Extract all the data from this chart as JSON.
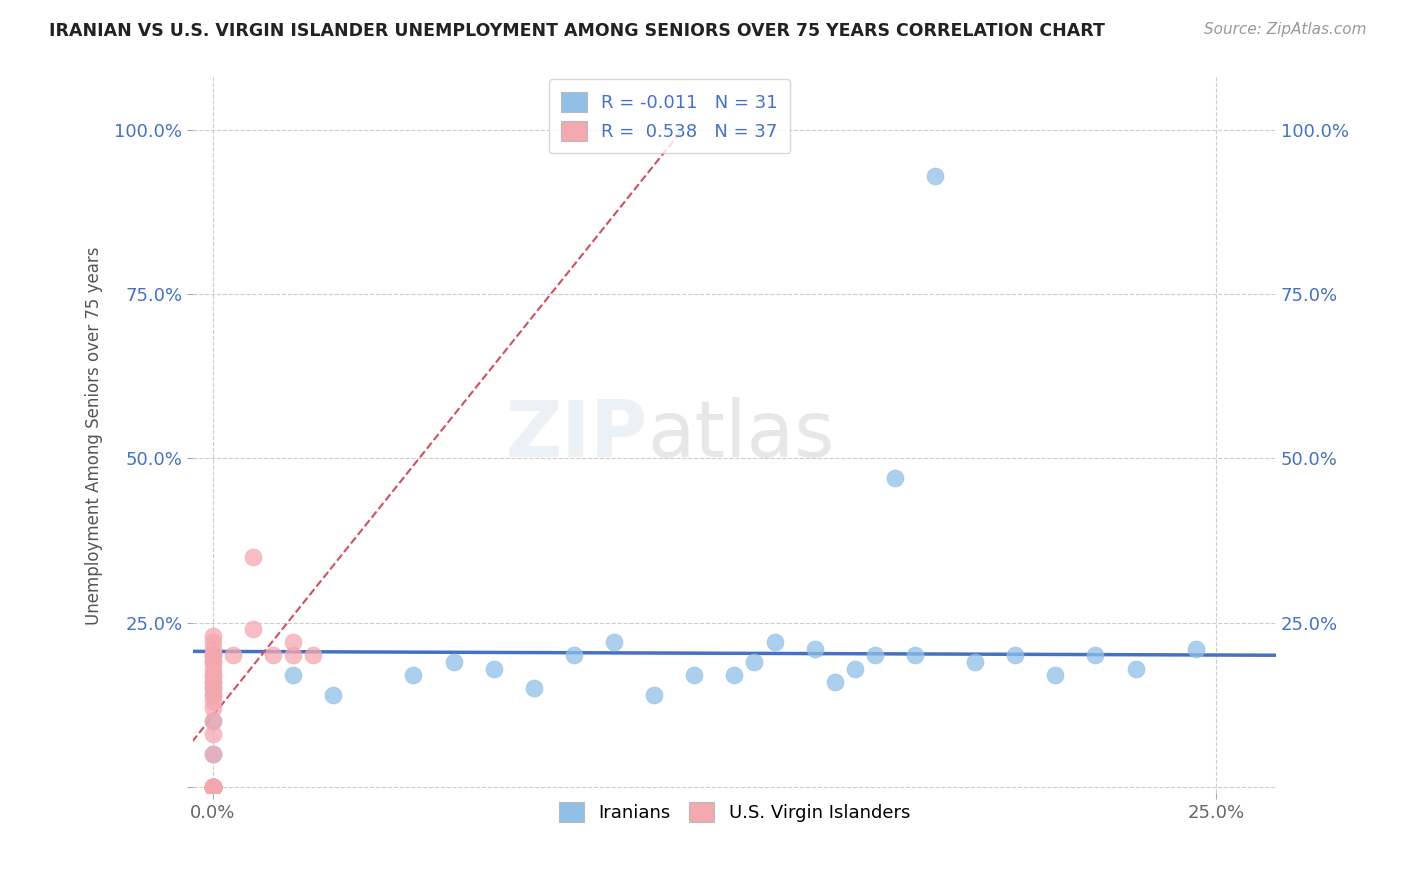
{
  "title": "IRANIAN VS U.S. VIRGIN ISLANDER UNEMPLOYMENT AMONG SENIORS OVER 75 YEARS CORRELATION CHART",
  "source": "Source: ZipAtlas.com",
  "ylabel": "Unemployment Among Seniors over 75 years",
  "color_iranian": "#90C0E8",
  "color_virgin": "#F4A8B0",
  "trendline_color_iranian": "#4472C4",
  "trendline_color_virgin": "#D05060",
  "watermark_zip": "ZIP",
  "watermark_atlas": "atlas",
  "label_iranians": "Iranians",
  "label_virgin": "U.S. Virgin Islanders",
  "legend1_text1": "R = -0.011   N = 31",
  "legend1_text2": "R =  0.538   N = 37",
  "iranian_x": [
    0.0,
    0.0,
    0.0,
    0.0,
    0.0,
    0.02,
    0.03,
    0.05,
    0.06,
    0.07,
    0.08,
    0.09,
    0.1,
    0.11,
    0.12,
    0.13,
    0.14,
    0.15,
    0.16,
    0.165,
    0.17,
    0.175,
    0.18,
    0.19,
    0.2,
    0.21,
    0.22,
    0.23,
    0.135,
    0.155,
    0.245
  ],
  "iranian_y": [
    0.0,
    0.05,
    0.1,
    0.15,
    0.2,
    0.17,
    0.14,
    0.17,
    0.19,
    0.18,
    0.15,
    0.2,
    0.22,
    0.14,
    0.17,
    0.17,
    0.22,
    0.21,
    0.18,
    0.2,
    0.47,
    0.2,
    0.93,
    0.19,
    0.2,
    0.17,
    0.2,
    0.18,
    0.19,
    0.16,
    0.21
  ],
  "virgin_x": [
    0.0,
    0.0,
    0.0,
    0.0,
    0.0,
    0.0,
    0.0,
    0.0,
    0.0,
    0.0,
    0.0,
    0.0,
    0.0,
    0.0,
    0.0,
    0.0,
    0.0,
    0.0,
    0.0,
    0.0,
    0.0,
    0.0,
    0.0,
    0.0,
    0.0,
    0.0,
    0.0,
    0.0,
    0.0,
    0.0,
    0.005,
    0.01,
    0.01,
    0.015,
    0.02,
    0.02,
    0.025
  ],
  "virgin_y": [
    0.0,
    0.0,
    0.0,
    0.0,
    0.0,
    0.0,
    0.0,
    0.0,
    0.0,
    0.0,
    0.05,
    0.08,
    0.1,
    0.12,
    0.13,
    0.14,
    0.15,
    0.16,
    0.17,
    0.18,
    0.19,
    0.2,
    0.2,
    0.21,
    0.22,
    0.23,
    0.14,
    0.16,
    0.17,
    0.19,
    0.2,
    0.24,
    0.35,
    0.2,
    0.22,
    0.2,
    0.2
  ],
  "xlim": [
    -0.005,
    0.265
  ],
  "ylim": [
    -0.01,
    1.08
  ],
  "xticks": [
    0.0,
    0.25
  ],
  "yticks": [
    0.0,
    0.25,
    0.5,
    0.75,
    1.0
  ],
  "xtick_labels": [
    "0.0%",
    "25.0%"
  ],
  "ytick_labels": [
    "",
    "25.0%",
    "50.0%",
    "75.0%",
    "100.0%"
  ]
}
